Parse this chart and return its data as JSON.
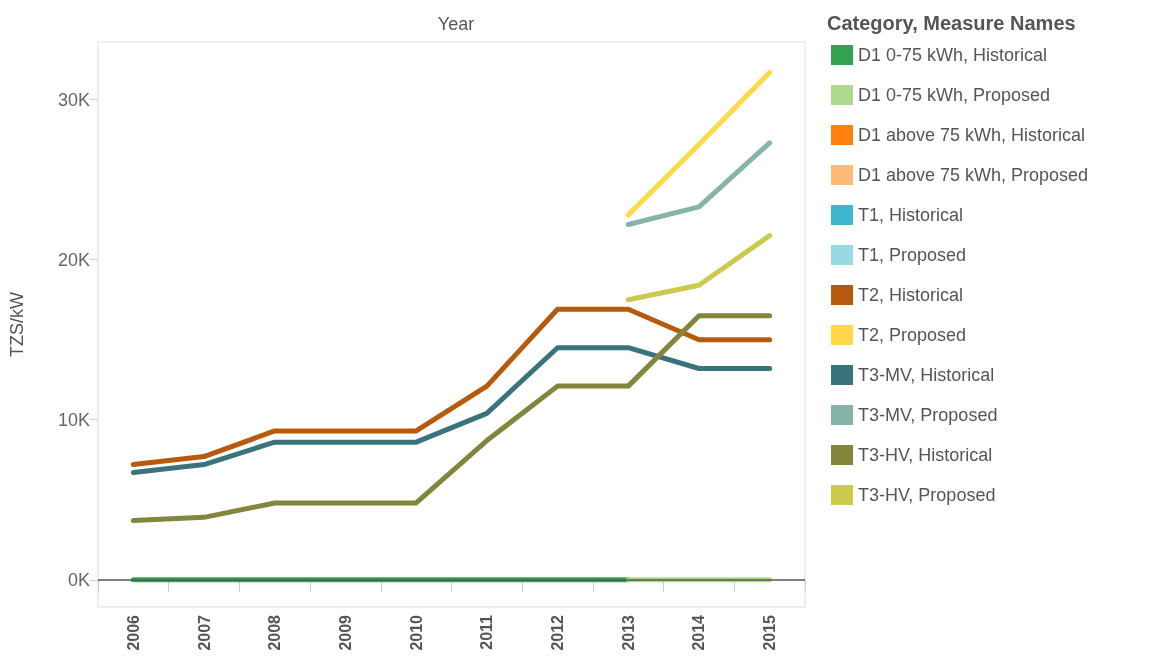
{
  "chart_data": {
    "type": "line",
    "xlabel": "Year",
    "ylabel": "TZS/kW",
    "legend_title": "Category, Measure Names",
    "categories": [
      "2006",
      "2007",
      "2008",
      "2009",
      "2010",
      "2011",
      "2012",
      "2013",
      "2014",
      "2015"
    ],
    "series": [
      {
        "name": "D1 0-75 kWh, Historical",
        "color": "#32a251",
        "values": [
          0,
          0,
          0,
          0,
          0,
          0,
          0,
          0,
          null,
          null
        ]
      },
      {
        "name": "D1 0-75 kWh, Proposed",
        "color": "#acd98d",
        "values": [
          null,
          null,
          null,
          null,
          null,
          null,
          null,
          0,
          0,
          0
        ]
      },
      {
        "name": "D1 above 75 kWh, Historical",
        "color": "#ff7f0f",
        "values": [
          null,
          null,
          null,
          null,
          null,
          null,
          null,
          null,
          null,
          null
        ]
      },
      {
        "name": "D1 above 75 kWh, Proposed",
        "color": "#ffb977",
        "values": [
          null,
          null,
          null,
          null,
          null,
          null,
          null,
          null,
          null,
          null
        ]
      },
      {
        "name": "T1, Historical",
        "color": "#3cb7cc",
        "values": [
          null,
          null,
          null,
          null,
          null,
          null,
          null,
          null,
          null,
          null
        ]
      },
      {
        "name": "T1, Proposed",
        "color": "#98d9e4",
        "values": [
          null,
          null,
          null,
          null,
          null,
          null,
          null,
          null,
          null,
          null
        ]
      },
      {
        "name": "T2, Historical",
        "color": "#b85a0d",
        "values": [
          7200,
          7700,
          9300,
          9300,
          9300,
          12100,
          16900,
          16900,
          15000,
          15000
        ]
      },
      {
        "name": "T2, Proposed",
        "color": "#ffd94a",
        "values": [
          null,
          null,
          null,
          null,
          null,
          null,
          null,
          22800,
          27200,
          31700
        ]
      },
      {
        "name": "T3-MV, Historical",
        "color": "#39737c",
        "values": [
          6700,
          7200,
          8600,
          8600,
          8600,
          10400,
          14500,
          14500,
          13200,
          13200
        ]
      },
      {
        "name": "T3-MV, Proposed",
        "color": "#86b4a9",
        "values": [
          null,
          null,
          null,
          null,
          null,
          null,
          null,
          22200,
          23300,
          27300
        ]
      },
      {
        "name": "T3-HV, Historical",
        "color": "#82853b",
        "values": [
          3700,
          3900,
          4800,
          4800,
          4800,
          8700,
          12100,
          12100,
          16500,
          16500
        ]
      },
      {
        "name": "T3-HV, Proposed",
        "color": "#ccc94d",
        "values": [
          null,
          null,
          null,
          null,
          null,
          null,
          null,
          17500,
          18400,
          21500
        ]
      }
    ],
    "ylim": [
      -1700,
      33600
    ],
    "yticks": [
      {
        "value": 0,
        "label": "0K"
      },
      {
        "value": 10000,
        "label": "10K"
      },
      {
        "value": 20000,
        "label": "20K"
      },
      {
        "value": 30000,
        "label": "30K"
      }
    ],
    "ref_lines": [
      {
        "axis": "y",
        "value": 0,
        "color": "#555555"
      }
    ],
    "grid": false,
    "legend": "right",
    "marker": "none",
    "line_style": "solid"
  }
}
